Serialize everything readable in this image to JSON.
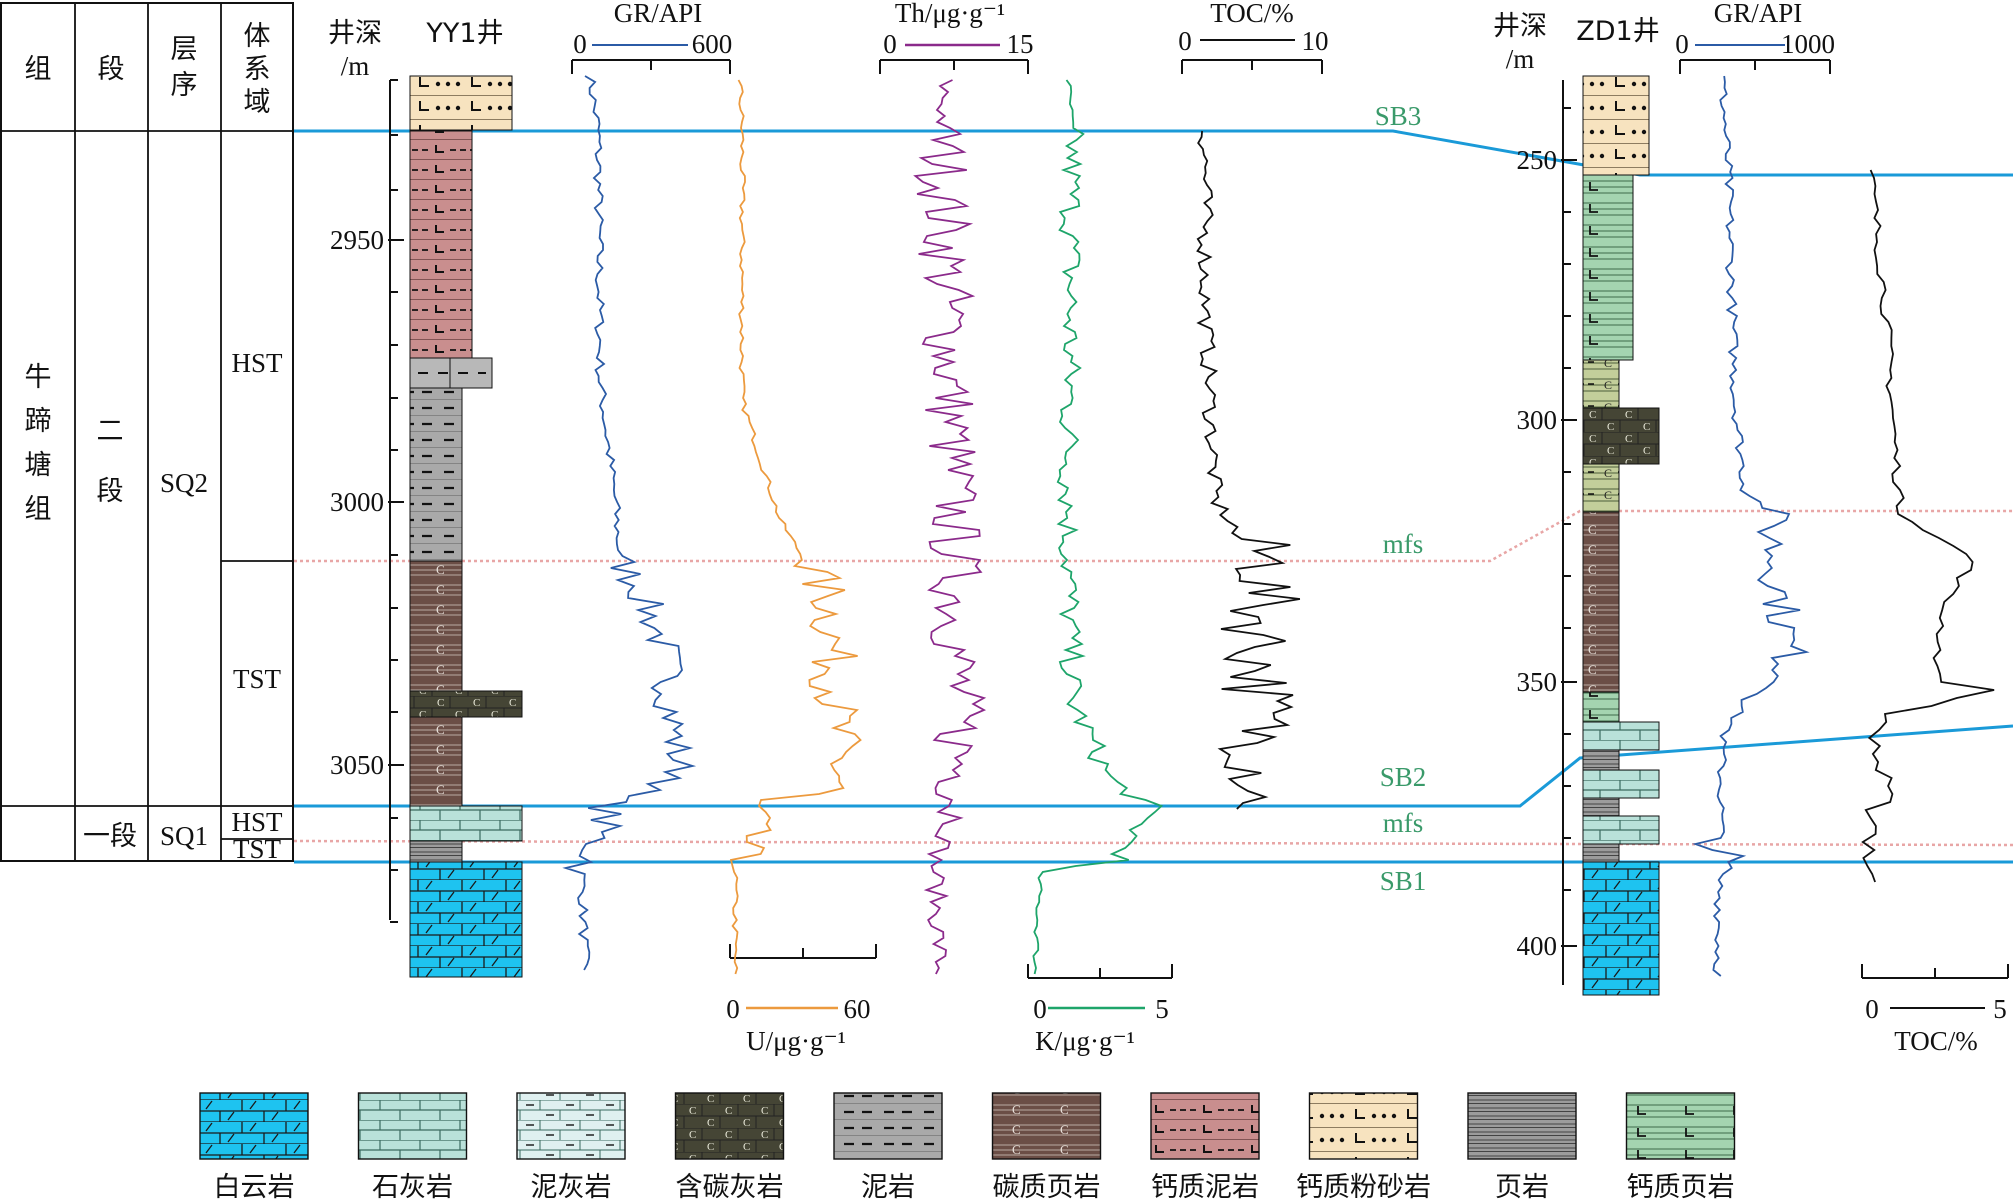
{
  "strat_table": {
    "headers": [
      "组",
      "段",
      "层序",
      "体系域"
    ],
    "formation": "牛蹄塘组",
    "member2": "二段",
    "member1": "一段",
    "seq2": "SQ2",
    "seq1": "SQ1",
    "tracts": [
      "HST",
      "TST",
      "HST",
      "TST"
    ]
  },
  "yy1": {
    "well_name": "YY1井",
    "depth_header": "井深",
    "depth_unit": "/m",
    "depth_ticks": [
      "2950",
      "3000",
      "3050"
    ],
    "gr_title": "GR/API",
    "gr_min": "0",
    "gr_max": "600",
    "th_title": "Th/μg·g⁻¹",
    "th_min": "0",
    "th_max": "15",
    "toc_title": "TOC/%",
    "toc_min": "0",
    "toc_max": "10",
    "u_title": "U/μg·g⁻¹",
    "u_min": "0",
    "u_max": "60",
    "k_title": "K/μg·g⁻¹",
    "k_min": "0",
    "k_max": "5"
  },
  "zd1": {
    "well_name": "ZD1井",
    "depth_header": "井深",
    "depth_unit": "/m",
    "depth_ticks": [
      "250",
      "300",
      "350",
      "400"
    ],
    "gr_title": "GR/API",
    "gr_min": "0",
    "gr_max": "1000",
    "toc_title": "TOC/%",
    "toc_min": "0",
    "toc_max": "5"
  },
  "boundaries": {
    "sb3": "SB3",
    "mfs_upper": "mfs",
    "sb2": "SB2",
    "mfs_lower": "mfs",
    "sb1": "SB1"
  },
  "legend": [
    {
      "pattern": "dolomite",
      "label": "白云岩",
      "color": "#1ec3f0"
    },
    {
      "pattern": "limestone",
      "label": "石灰岩",
      "color": "#b9e1d9"
    },
    {
      "pattern": "marl",
      "label": "泥灰岩",
      "color": "#dff0f0"
    },
    {
      "pattern": "carb_limestone",
      "label": "含碳灰岩",
      "color": "#454535"
    },
    {
      "pattern": "mudstone",
      "label": "泥岩",
      "color": "#a9a9a9"
    },
    {
      "pattern": "carb_shale",
      "label": "碳质页岩",
      "color": "#6b4e46"
    },
    {
      "pattern": "calc_mud",
      "label": "钙质泥岩",
      "color": "#c98e8e"
    },
    {
      "pattern": "calc_silt",
      "label": "钙质粉砂岩",
      "color": "#f7e3bf"
    },
    {
      "pattern": "shale",
      "label": "页岩",
      "color": "#9c9c9c"
    },
    {
      "pattern": "calc_shale",
      "label": "钙质页岩",
      "color": "#a4d4b0"
    }
  ],
  "colors": {
    "boundary_line": "#1a9ad8",
    "mfs_line": "#e8a6a6",
    "label_green": "#3a9a6a",
    "gr_curve": "#2b5ba6",
    "th_curve": "#8b2a8b",
    "u_curve": "#ec9a3e",
    "k_curve": "#1ea56a",
    "toc_curve": "#111111"
  }
}
